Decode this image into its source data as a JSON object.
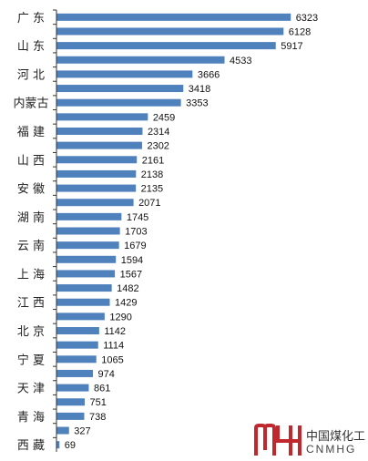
{
  "chart_data": {
    "type": "bar",
    "orientation": "horizontal",
    "categories": [
      "广 东",
      "",
      "山 东",
      "",
      "河 北",
      "",
      "内蒙古",
      "",
      "福 建",
      "",
      "山 西",
      "",
      "安 徽",
      "",
      "湖 南",
      "",
      "云 南",
      "",
      "上 海",
      "",
      "江 西",
      "",
      "北 京",
      "",
      "宁 夏",
      "",
      "天 津",
      "",
      "青 海",
      "",
      "西 藏"
    ],
    "values": [
      6323,
      6128,
      5917,
      4533,
      3666,
      3418,
      3353,
      2459,
      2314,
      2302,
      2161,
      2138,
      2135,
      2071,
      1745,
      1703,
      1679,
      1594,
      1567,
      1482,
      1429,
      1290,
      1142,
      1114,
      1065,
      974,
      861,
      751,
      738,
      327,
      69
    ],
    "value_labels": [
      "6323",
      "6128",
      "5917",
      "4533",
      "3666",
      "3418",
      "3353",
      "2459",
      "2314",
      "2302",
      "2161",
      "2138",
      "2135",
      "2071",
      "1745",
      "1703",
      "1679",
      "1594",
      "1567",
      "1482",
      "1429",
      "1290",
      "1142",
      "1114",
      "1065",
      "974",
      "861",
      "751",
      "738",
      "327",
      "69"
    ],
    "xlim": [
      0,
      6700
    ],
    "grid": false,
    "bar_color": "#4F81BD"
  },
  "logo": {
    "name_cn": "中国煤化工",
    "name_en": "CNMHG",
    "color": "#C0282D"
  }
}
